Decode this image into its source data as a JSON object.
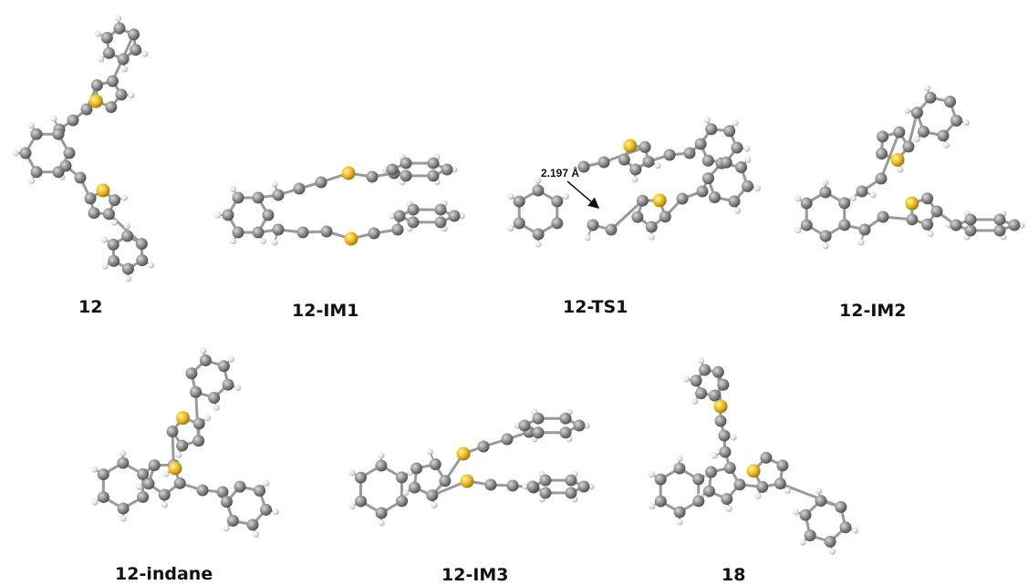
{
  "structures": [
    {
      "id": "s12",
      "label": "12"
    },
    {
      "id": "s12im1",
      "label": "12-IM1"
    },
    {
      "id": "s12ts1",
      "label": "12-TS1"
    },
    {
      "id": "s12im2",
      "label": "12-IM2"
    },
    {
      "id": "s12indane",
      "label": "12-indane"
    },
    {
      "id": "s12im3",
      "label": "12-IM3"
    },
    {
      "id": "s18",
      "label": "18"
    }
  ],
  "annotations": {
    "ts1_distance": "2.197 Å"
  },
  "colors": {
    "carbon": "#8a8a8a",
    "hydrogen": "#e6e6e6",
    "sulfur": "#e8b923",
    "bond": "#9a9a9a"
  }
}
